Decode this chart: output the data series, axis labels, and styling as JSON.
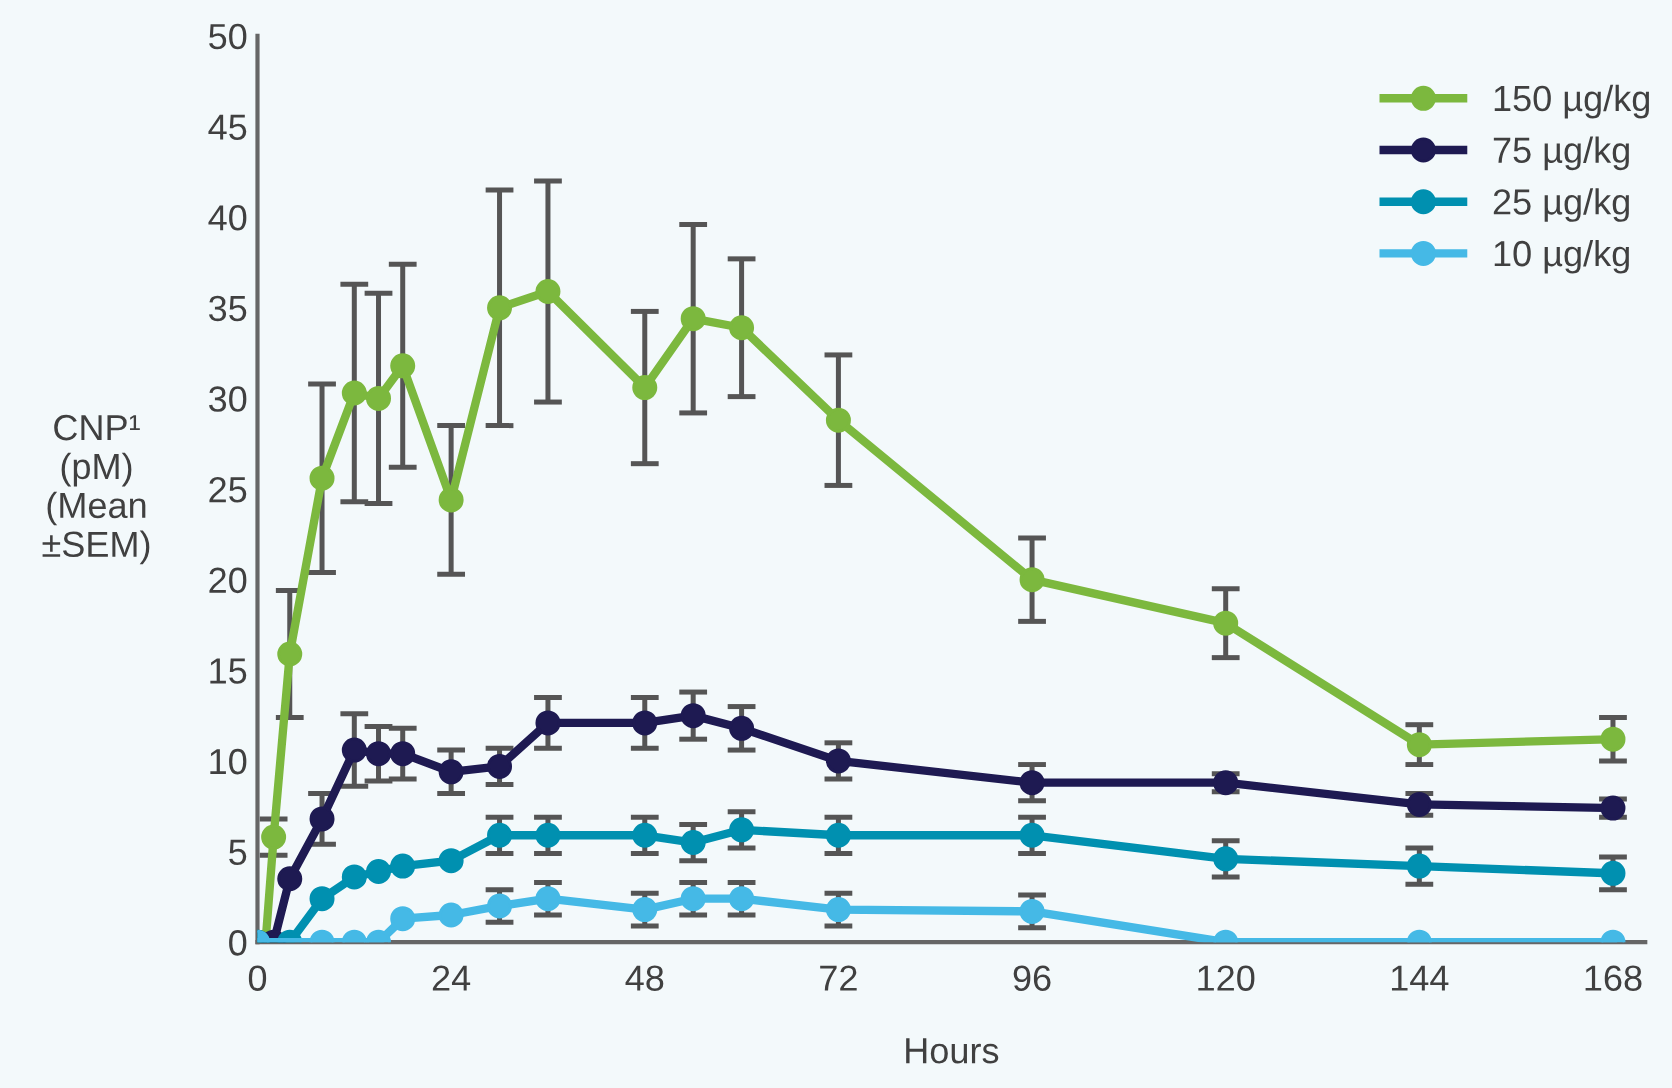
{
  "chart_data": {
    "type": "line",
    "xlabel": "Hours",
    "ylabel": "CNP¹\n(pM)\n(Mean\n±SEM)",
    "xlim": [
      0,
      172
    ],
    "xticks": [
      0,
      24,
      48,
      72,
      96,
      120,
      144,
      168
    ],
    "ylim": [
      0,
      50
    ],
    "yticks": [
      0,
      5,
      10,
      15,
      20,
      25,
      30,
      35,
      40,
      45,
      50
    ],
    "grid": false,
    "legend": "top right",
    "marker": "circle",
    "line_style": "solid",
    "series": [
      {
        "name": "150 µg/kg",
        "color": "#7cb83e",
        "x": [
          0,
          1,
          2,
          4,
          8,
          12,
          15,
          18,
          24,
          30,
          36,
          48,
          54,
          60,
          72,
          96,
          120,
          144,
          168
        ],
        "values": [
          0,
          0,
          5.8,
          15.9,
          25.6,
          30.3,
          30.0,
          31.8,
          24.4,
          35.0,
          35.9,
          30.6,
          34.4,
          33.9,
          28.8,
          20.0,
          17.6,
          10.9,
          11.2
        ],
        "errors": [
          null,
          null,
          1.0,
          3.5,
          5.2,
          6.0,
          5.8,
          5.6,
          4.1,
          6.5,
          6.1,
          4.2,
          5.2,
          3.8,
          3.6,
          2.3,
          1.9,
          1.1,
          1.2
        ]
      },
      {
        "name": "75 µg/kg",
        "color": "#1e1a52",
        "x": [
          0,
          2,
          4,
          8,
          12,
          15,
          18,
          24,
          30,
          36,
          48,
          54,
          60,
          72,
          96,
          120,
          144,
          168
        ],
        "values": [
          0,
          0,
          3.5,
          6.8,
          10.6,
          10.4,
          10.4,
          9.4,
          9.7,
          12.1,
          12.1,
          12.5,
          11.8,
          10.0,
          8.8,
          8.8,
          7.6,
          7.4
        ],
        "errors": [
          null,
          null,
          null,
          1.4,
          2.0,
          1.5,
          1.4,
          1.2,
          1.0,
          1.4,
          1.4,
          1.3,
          1.2,
          1.0,
          1.0,
          0.5,
          0.6,
          0.5
        ]
      },
      {
        "name": "25 µg/kg",
        "color": "#0090b0",
        "x": [
          0,
          4,
          8,
          12,
          15,
          18,
          24,
          30,
          36,
          48,
          54,
          60,
          72,
          96,
          120,
          144,
          168
        ],
        "values": [
          0,
          0,
          2.4,
          3.6,
          3.9,
          4.2,
          4.5,
          5.9,
          5.9,
          5.9,
          5.5,
          6.2,
          5.9,
          5.9,
          4.6,
          4.2,
          3.8
        ],
        "errors": [
          null,
          null,
          null,
          null,
          null,
          null,
          null,
          1.0,
          1.0,
          1.0,
          1.0,
          1.0,
          1.0,
          1.0,
          1.0,
          1.0,
          0.9
        ]
      },
      {
        "name": "10 µg/kg",
        "color": "#45b9e6",
        "x": [
          0,
          8,
          12,
          15,
          18,
          24,
          30,
          36,
          48,
          54,
          60,
          72,
          96,
          120,
          144,
          168
        ],
        "values": [
          0,
          0,
          0,
          0,
          1.3,
          1.5,
          2.0,
          2.4,
          1.8,
          2.4,
          2.4,
          1.8,
          1.7,
          0,
          0,
          0
        ],
        "errors": [
          null,
          null,
          null,
          null,
          null,
          null,
          0.9,
          0.9,
          0.9,
          0.9,
          0.9,
          0.9,
          0.9,
          null,
          null,
          null
        ]
      }
    ]
  }
}
